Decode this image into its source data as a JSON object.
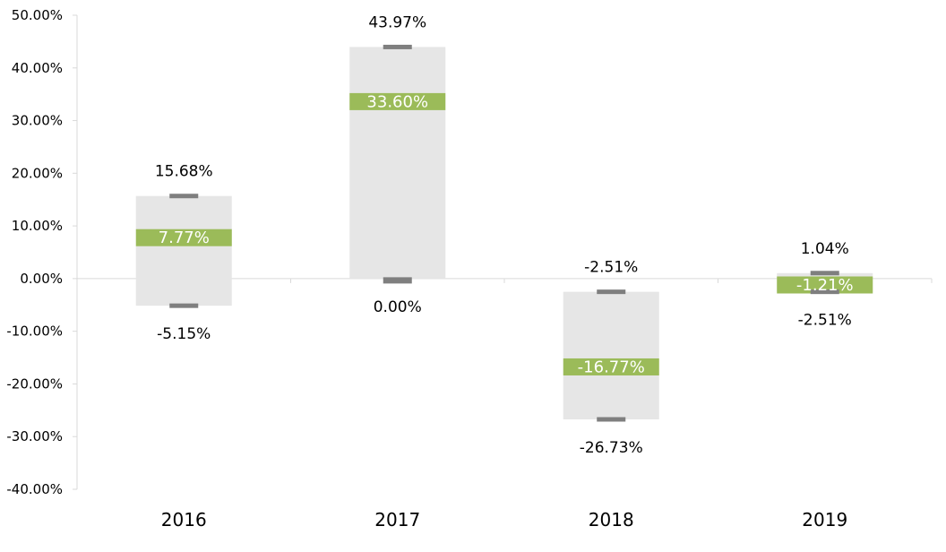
{
  "chart_data": {
    "type": "box",
    "title": "",
    "xlabel": "",
    "ylabel": "",
    "ylim": [
      -40,
      50
    ],
    "ytick_step": 10,
    "grid": false,
    "legend": "none",
    "ytick_labels": [
      "-40.00%",
      "-30.00%",
      "-20.00%",
      "-10.00%",
      "0.00%",
      "10.00%",
      "20.00%",
      "30.00%",
      "40.00%",
      "50.00%"
    ],
    "categories": [
      "2016",
      "2017",
      "2018",
      "2019"
    ],
    "series": [
      {
        "category": "2016",
        "max": 15.68,
        "median": 7.77,
        "min": -5.15,
        "max_label": "15.68%",
        "median_label": "7.77%",
        "min_label": "-5.15%"
      },
      {
        "category": "2017",
        "max": 43.97,
        "median": 33.6,
        "min": 0.0,
        "max_label": "43.97%",
        "median_label": "33.60%",
        "min_label": "0.00%"
      },
      {
        "category": "2018",
        "max": -2.51,
        "median": -16.77,
        "min": -26.73,
        "max_label": "-2.51%",
        "median_label": "-16.77%",
        "min_label": "-26.73%"
      },
      {
        "category": "2019",
        "max": 1.04,
        "median": -1.21,
        "min": -2.51,
        "max_label": "1.04%",
        "median_label": "-1.21%",
        "min_label": "-2.51%"
      }
    ],
    "colors": {
      "range_box": "#e6e6e6",
      "median_band": "#9bbb59",
      "whisker": "#7f7f7f",
      "axis": "#d9d9d9"
    }
  }
}
